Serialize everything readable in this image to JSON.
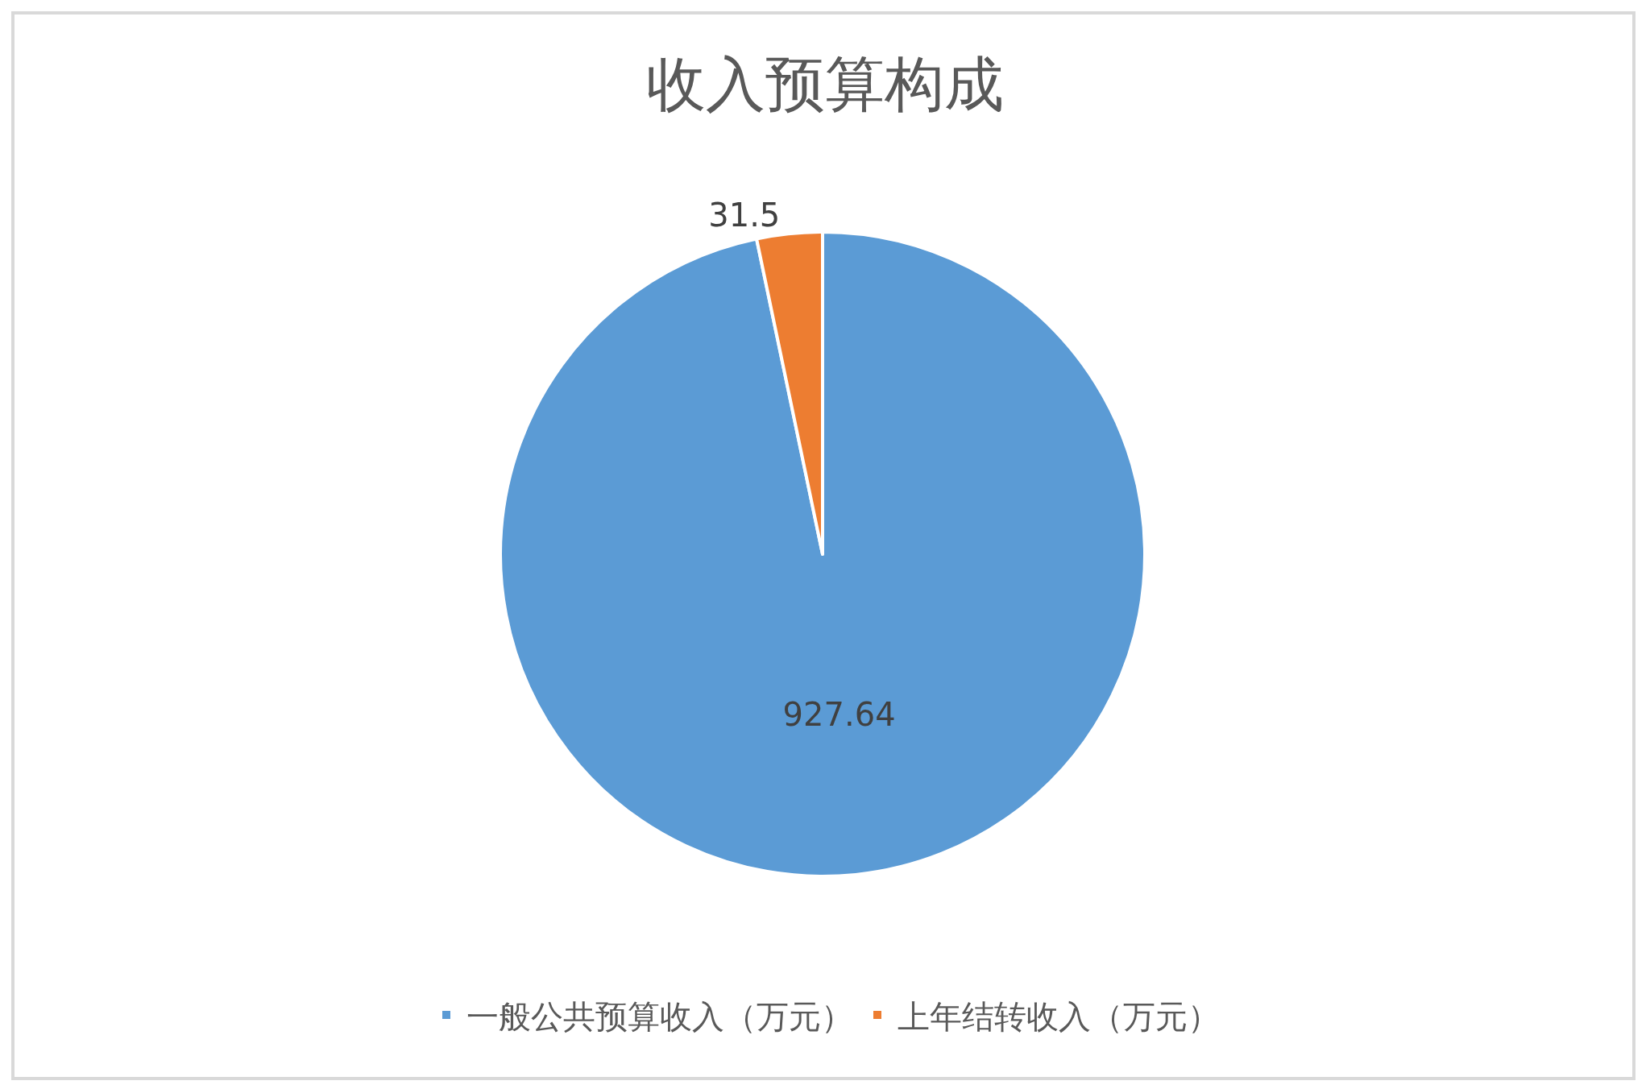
{
  "chart_data": {
    "type": "pie",
    "title": "收入预算构成",
    "categories": [
      "一般公共预算收入（万元）",
      "上年结转收入（万元）"
    ],
    "values": [
      927.64,
      31.5
    ],
    "colors": [
      "#5b9bd5",
      "#ed7d31"
    ],
    "data_labels": true,
    "legend": "bottom"
  }
}
